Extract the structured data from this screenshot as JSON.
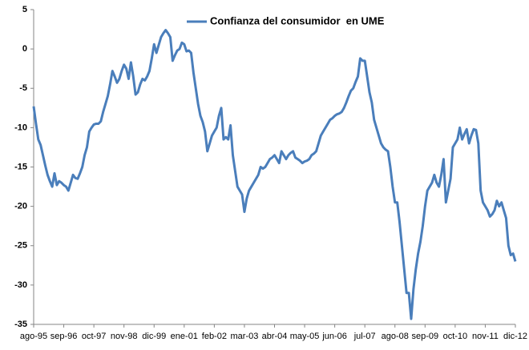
{
  "chart_data": {
    "type": "line",
    "categories": [
      "ago-95",
      null,
      null,
      null,
      null,
      null,
      null,
      null,
      null,
      null,
      null,
      null,
      null,
      "sep-96",
      null,
      null,
      null,
      null,
      null,
      null,
      null,
      null,
      null,
      null,
      null,
      null,
      "oct-97",
      null,
      null,
      null,
      null,
      null,
      null,
      null,
      null,
      null,
      null,
      null,
      null,
      "nov-98",
      null,
      null,
      null,
      null,
      null,
      null,
      null,
      null,
      null,
      null,
      null,
      null,
      "dic-99",
      null,
      null,
      null,
      null,
      null,
      null,
      null,
      null,
      null,
      null,
      null,
      null,
      "ene-01",
      null,
      null,
      null,
      null,
      null,
      null,
      null,
      null,
      null,
      null,
      null,
      null,
      "feb-02",
      null,
      null,
      null,
      null,
      null,
      null,
      null,
      null,
      null,
      null,
      null,
      null,
      "mar-03",
      null,
      null,
      null,
      null,
      null,
      null,
      null,
      null,
      null,
      null,
      null,
      null,
      "abr-04",
      null,
      null,
      null,
      null,
      null,
      null,
      null,
      null,
      null,
      null,
      null,
      null,
      "may-05",
      null,
      null,
      null,
      null,
      null,
      null,
      null,
      null,
      null,
      null,
      null,
      null,
      "jun-06",
      null,
      null,
      null,
      null,
      null,
      null,
      null,
      null,
      null,
      null,
      null,
      null,
      "jul-07",
      null,
      null,
      null,
      null,
      null,
      null,
      null,
      null,
      null,
      null,
      null,
      null,
      "ago-08",
      null,
      null,
      null,
      null,
      null,
      null,
      null,
      null,
      null,
      null,
      null,
      null,
      "sep-09",
      null,
      null,
      null,
      null,
      null,
      null,
      null,
      null,
      null,
      null,
      null,
      null,
      "oct-10",
      null,
      null,
      null,
      null,
      null,
      null,
      null,
      null,
      null,
      null,
      null,
      null,
      "nov-11",
      null,
      null,
      null,
      null,
      null,
      null,
      null,
      null,
      null,
      null,
      null,
      null,
      "dic-12"
    ],
    "series": [
      {
        "name": "Confianza del consumidor  en UME",
        "color": "#4a7ebb",
        "values": [
          -7.3,
          -9.5,
          -11.5,
          -12.2,
          -13.5,
          -14.8,
          -16,
          -16.8,
          -17.5,
          -15.8,
          -17.3,
          -16.8,
          -17,
          -17.3,
          -17.5,
          -18,
          -17,
          -16,
          -16.4,
          -16.5,
          -15.8,
          -15,
          -13.5,
          -12.5,
          -10.5,
          -10,
          -9.6,
          -9.5,
          -9.5,
          -9.2,
          -8,
          -7,
          -6,
          -4.5,
          -2.8,
          -3.5,
          -4.3,
          -3.8,
          -2.8,
          -2,
          -2.5,
          -3.8,
          -1.7,
          -3.5,
          -5.8,
          -5.5,
          -4.5,
          -3.8,
          -4,
          -3.5,
          -2.8,
          -1.2,
          0.6,
          -0.5,
          0.5,
          1.5,
          2,
          2.4,
          2,
          1.5,
          -1.5,
          -0.8,
          -0.2,
          0,
          0.8,
          0.6,
          -0.3,
          -0.2,
          -0.5,
          -3,
          -5,
          -7,
          -8.5,
          -9.3,
          -10.5,
          -13,
          -12,
          -11,
          -10.5,
          -10,
          -8.5,
          -7.5,
          -11.5,
          -11.2,
          -11.5,
          -9.7,
          -13.5,
          -15.5,
          -17.5,
          -18,
          -18.5,
          -20.7,
          -19,
          -18,
          -17.5,
          -17,
          -16.5,
          -16,
          -15,
          -15.2,
          -15,
          -14.5,
          -14,
          -13.8,
          -13.5,
          -14,
          -14.5,
          -13,
          -13.5,
          -14,
          -13.5,
          -13.2,
          -13,
          -13.8,
          -14,
          -14.2,
          -14.5,
          -14.3,
          -14.2,
          -14,
          -13.5,
          -13.3,
          -13,
          -12,
          -11,
          -10.5,
          -10,
          -9.5,
          -9,
          -8.8,
          -8.5,
          -8.3,
          -8.2,
          -8,
          -7.5,
          -6.8,
          -6,
          -5.3,
          -5,
          -4.2,
          -3.5,
          -1.2,
          -1.5,
          -1.5,
          -3.5,
          -5.5,
          -6.8,
          -9,
          -10,
          -11,
          -12,
          -12.5,
          -12.8,
          -13,
          -15,
          -17.5,
          -19.5,
          -19.5,
          -22,
          -25,
          -28,
          -31,
          -31,
          -34.3,
          -30.5,
          -28,
          -26,
          -24.5,
          -22.5,
          -20,
          -18,
          -17.5,
          -17,
          -16,
          -17,
          -17.5,
          -16,
          -14,
          -19.5,
          -18,
          -16.5,
          -12.5,
          -12,
          -11.5,
          -10,
          -11.5,
          -10.8,
          -10.2,
          -12,
          -11,
          -10.2,
          -10.3,
          -12,
          -18,
          -19.5,
          -20,
          -20.5,
          -21.3,
          -21,
          -20.5,
          -19.3,
          -20,
          -19.5,
          -20.5,
          -21.5,
          -25,
          -26.2,
          -26,
          -27
        ]
      }
    ],
    "ylim": [
      -35,
      5
    ],
    "yticks": [
      5,
      0,
      -5,
      -10,
      -15,
      -20,
      -25,
      -30,
      -35
    ],
    "grid": false,
    "legend": "top"
  }
}
